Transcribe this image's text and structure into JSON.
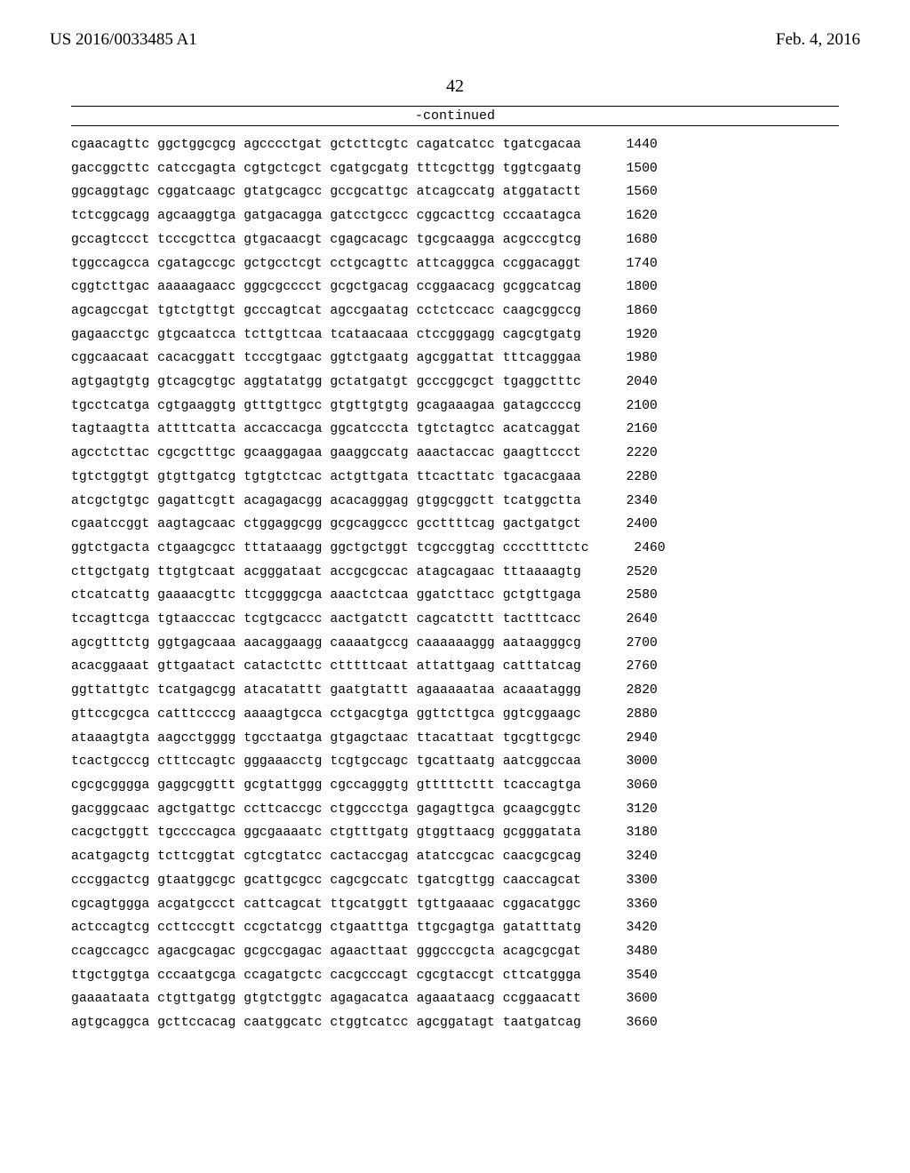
{
  "header": {
    "publication_number": "US 2016/0033485 A1",
    "publication_date": "Feb. 4, 2016"
  },
  "page_number": "42",
  "continued_label": "-continued",
  "sequence": {
    "font_family": "Courier New",
    "font_size_pt": 11,
    "color": "#000000",
    "background": "#ffffff",
    "groups_per_line": 6,
    "group_length": 10,
    "lines": [
      {
        "groups": [
          "cgaacagttc",
          "ggctggcgcg",
          "agcccctgat",
          "gctcttcgtc",
          "cagatcatcc",
          "tgatcgacaa"
        ],
        "pos": 1440
      },
      {
        "groups": [
          "gaccggcttc",
          "catccgagta",
          "cgtgctcgct",
          "cgatgcgatg",
          "tttcgcttgg",
          "tggtcgaatg"
        ],
        "pos": 1500
      },
      {
        "groups": [
          "ggcaggtagc",
          "cggatcaagc",
          "gtatgcagcc",
          "gccgcattgc",
          "atcagccatg",
          "atggatactt"
        ],
        "pos": 1560
      },
      {
        "groups": [
          "tctcggcagg",
          "agcaaggtga",
          "gatgacagga",
          "gatcctgccc",
          "cggcacttcg",
          "cccaatagca"
        ],
        "pos": 1620
      },
      {
        "groups": [
          "gccagtccct",
          "tcccgcttca",
          "gtgacaacgt",
          "cgagcacagc",
          "tgcgcaagga",
          "acgcccgtcg"
        ],
        "pos": 1680
      },
      {
        "groups": [
          "tggccagcca",
          "cgatagccgc",
          "gctgcctcgt",
          "cctgcagttc",
          "attcagggca",
          "ccggacaggt"
        ],
        "pos": 1740
      },
      {
        "groups": [
          "cggtcttgac",
          "aaaaagaacc",
          "gggcgcccct",
          "gcgctgacag",
          "ccggaacacg",
          "gcggcatcag"
        ],
        "pos": 1800
      },
      {
        "groups": [
          "agcagccgat",
          "tgtctgttgt",
          "gcccagtcat",
          "agccgaatag",
          "cctctccacc",
          "caagcggccg"
        ],
        "pos": 1860
      },
      {
        "groups": [
          "gagaacctgc",
          "gtgcaatcca",
          "tcttgttcaa",
          "tcataacaaa",
          "ctccgggagg",
          "cagcgtgatg"
        ],
        "pos": 1920
      },
      {
        "groups": [
          "cggcaacaat",
          "cacacggatt",
          "tcccgtgaac",
          "ggtctgaatg",
          "agcggattat",
          "tttcagggaa"
        ],
        "pos": 1980
      },
      {
        "groups": [
          "agtgagtgtg",
          "gtcagcgtgc",
          "aggtatatgg",
          "gctatgatgt",
          "gcccggcgct",
          "tgaggctttc"
        ],
        "pos": 2040
      },
      {
        "groups": [
          "tgcctcatga",
          "cgtgaaggtg",
          "gtttgttgcc",
          "gtgttgtgtg",
          "gcagaaagaa",
          "gatagccccg"
        ],
        "pos": 2100
      },
      {
        "groups": [
          "tagtaagtta",
          "attttcatta",
          "accaccacga",
          "ggcatcccta",
          "tgtctagtcc",
          "acatcaggat"
        ],
        "pos": 2160
      },
      {
        "groups": [
          "agcctcttac",
          "cgcgctttgc",
          "gcaaggagaa",
          "gaaggccatg",
          "aaactaccac",
          "gaagttccct"
        ],
        "pos": 2220
      },
      {
        "groups": [
          "tgtctggtgt",
          "gtgttgatcg",
          "tgtgtctcac",
          "actgttgata",
          "ttcacttatc",
          "tgacacgaaa"
        ],
        "pos": 2280
      },
      {
        "groups": [
          "atcgctgtgc",
          "gagattcgtt",
          "acagagacgg",
          "acacagggag",
          "gtggcggctt",
          "tcatggctta"
        ],
        "pos": 2340
      },
      {
        "groups": [
          "cgaatccggt",
          "aagtagcaac",
          "ctggaggcgg",
          "gcgcaggccc",
          "gccttttcag",
          "gactgatgct"
        ],
        "pos": 2400
      },
      {
        "groups": [
          "ggtctgacta",
          "ctgaagcgcc",
          "tttataaagg",
          "ggctgctggt",
          "tcgccggtag",
          "ccccttttctc"
        ],
        "pos": 2460
      },
      {
        "groups": [
          "cttgctgatg",
          "ttgtgtcaat",
          "acgggataat",
          "accgcgccac",
          "atagcagaac",
          "tttaaaagtg"
        ],
        "pos": 2520
      },
      {
        "groups": [
          "ctcatcattg",
          "gaaaacgttc",
          "ttcggggcga",
          "aaactctcaa",
          "ggatcttacc",
          "gctgttgaga"
        ],
        "pos": 2580
      },
      {
        "groups": [
          "tccagttcga",
          "tgtaacccac",
          "tcgtgcaccc",
          "aactgatctt",
          "cagcatcttt",
          "tactttcacc"
        ],
        "pos": 2640
      },
      {
        "groups": [
          "agcgtttctg",
          "ggtgagcaaa",
          "aacaggaagg",
          "caaaatgccg",
          "caaaaaaggg",
          "aataagggcg"
        ],
        "pos": 2700
      },
      {
        "groups": [
          "acacggaaat",
          "gttgaatact",
          "catactcttc",
          "ctttttcaat",
          "attattgaag",
          "catttatcag"
        ],
        "pos": 2760
      },
      {
        "groups": [
          "ggttattgtc",
          "tcatgagcgg",
          "atacatattt",
          "gaatgtattt",
          "agaaaaataa",
          "acaaataggg"
        ],
        "pos": 2820
      },
      {
        "groups": [
          "gttccgcgca",
          "catttccccg",
          "aaaagtgcca",
          "cctgacgtga",
          "ggttcttgca",
          "ggtcggaagc"
        ],
        "pos": 2880
      },
      {
        "groups": [
          "ataaagtgta",
          "aagcctgggg",
          "tgcctaatga",
          "gtgagctaac",
          "ttacattaat",
          "tgcgttgcgc"
        ],
        "pos": 2940
      },
      {
        "groups": [
          "tcactgcccg",
          "ctttccagtc",
          "gggaaacctg",
          "tcgtgccagc",
          "tgcattaatg",
          "aatcggccaa"
        ],
        "pos": 3000
      },
      {
        "groups": [
          "cgcgcgggga",
          "gaggcggttt",
          "gcgtattggg",
          "cgccagggtg",
          "gtttttcttt",
          "tcaccagtga"
        ],
        "pos": 3060
      },
      {
        "groups": [
          "gacgggcaac",
          "agctgattgc",
          "ccttcaccgc",
          "ctggccctga",
          "gagagttgca",
          "gcaagcggtc"
        ],
        "pos": 3120
      },
      {
        "groups": [
          "cacgctggtt",
          "tgccccagca",
          "ggcgaaaatc",
          "ctgtttgatg",
          "gtggttaacg",
          "gcgggatata"
        ],
        "pos": 3180
      },
      {
        "groups": [
          "acatgagctg",
          "tcttcggtat",
          "cgtcgtatcc",
          "cactaccgag",
          "atatccgcac",
          "caacgcgcag"
        ],
        "pos": 3240
      },
      {
        "groups": [
          "cccggactcg",
          "gtaatggcgc",
          "gcattgcgcc",
          "cagcgccatc",
          "tgatcgttgg",
          "caaccagcat"
        ],
        "pos": 3300
      },
      {
        "groups": [
          "cgcagtggga",
          "acgatgccct",
          "cattcagcat",
          "ttgcatggtt",
          "tgttgaaaac",
          "cggacatggc"
        ],
        "pos": 3360
      },
      {
        "groups": [
          "actccagtcg",
          "ccttcccgtt",
          "ccgctatcgg",
          "ctgaatttga",
          "ttgcgagtga",
          "gatatttatg"
        ],
        "pos": 3420
      },
      {
        "groups": [
          "ccagccagcc",
          "agacgcagac",
          "gcgccgagac",
          "agaacttaat",
          "gggcccgcta",
          "acagcgcgat"
        ],
        "pos": 3480
      },
      {
        "groups": [
          "ttgctggtga",
          "cccaatgcga",
          "ccagatgctc",
          "cacgcccagt",
          "cgcgtaccgt",
          "cttcatggga"
        ],
        "pos": 3540
      },
      {
        "groups": [
          "gaaaataata",
          "ctgttgatgg",
          "gtgtctggtc",
          "agagacatca",
          "agaaataacg",
          "ccggaacatt"
        ],
        "pos": 3600
      },
      {
        "groups": [
          "agtgcaggca",
          "gcttccacag",
          "caatggcatc",
          "ctggtcatcc",
          "agcggatagt",
          "taatgatcag"
        ],
        "pos": 3660
      }
    ]
  }
}
